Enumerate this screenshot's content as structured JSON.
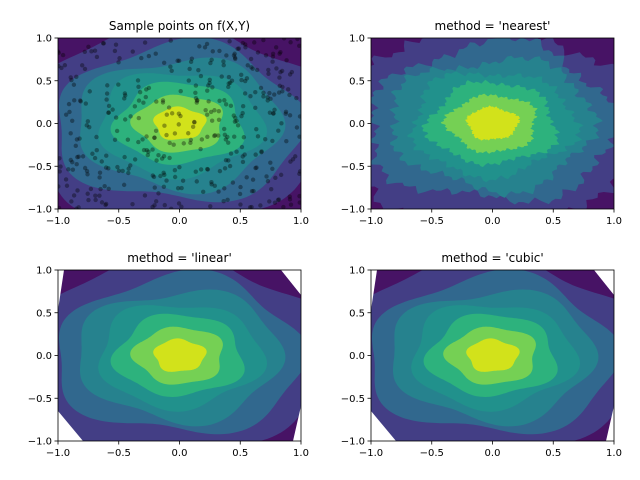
{
  "chart_data": [
    {
      "type": "contourf",
      "title": "Sample points on f(X,Y)",
      "xlim": [
        -1,
        1
      ],
      "ylim": [
        -1,
        1
      ],
      "xticks": [
        "−1.0",
        "−0.5",
        "0.0",
        "0.5",
        "1.0"
      ],
      "yticks": [
        "−1.0",
        "−0.5",
        "0.0",
        "0.5",
        "1.0"
      ],
      "overlay": "scatter sample points",
      "levels": 8
    },
    {
      "type": "contourf",
      "title": "method = 'nearest'",
      "xlim": [
        -1,
        1
      ],
      "ylim": [
        -1,
        1
      ],
      "xticks": [
        "−1.0",
        "−0.5",
        "0.0",
        "0.5",
        "1.0"
      ],
      "yticks": [
        "−1.0",
        "−0.5",
        "0.0",
        "0.5",
        "1.0"
      ],
      "levels": 8
    },
    {
      "type": "contourf",
      "title": "method = 'linear'",
      "xlim": [
        -1,
        1
      ],
      "ylim": [
        -1,
        1
      ],
      "xticks": [
        "−1.0",
        "−0.5",
        "0.0",
        "0.5",
        "1.0"
      ],
      "yticks": [
        "−1.0",
        "−0.5",
        "0.0",
        "0.5",
        "1.0"
      ],
      "levels": 8
    },
    {
      "type": "contourf",
      "title": "method = 'cubic'",
      "xlim": [
        -1,
        1
      ],
      "ylim": [
        -1,
        1
      ],
      "xticks": [
        "−1.0",
        "−0.5",
        "0.0",
        "0.5",
        "1.0"
      ],
      "yticks": [
        "−1.0",
        "−0.5",
        "0.0",
        "0.5",
        "1.0"
      ],
      "levels": 8
    }
  ],
  "colormap": "viridis",
  "level_colors": [
    "#471365",
    "#433e85",
    "#31688e",
    "#26828e",
    "#21918c",
    "#2db27d",
    "#75d054",
    "#d2e21b"
  ]
}
